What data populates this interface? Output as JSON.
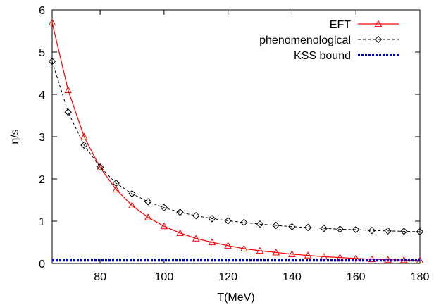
{
  "chart_data": {
    "type": "line",
    "xlabel": "T(MeV)",
    "ylabel": "η/s",
    "xlim": [
      65,
      180
    ],
    "ylim": [
      0,
      6
    ],
    "x_ticks": [
      80,
      100,
      120,
      140,
      160,
      180
    ],
    "y_ticks": [
      0,
      1,
      2,
      3,
      4,
      5,
      6
    ],
    "grid": false,
    "legend_position": "top-right",
    "series": [
      {
        "name": "EFT",
        "color": "#ff0000",
        "style": "solid",
        "marker": "triangle",
        "x": [
          65,
          70,
          75,
          80,
          85,
          90,
          95,
          100,
          105,
          110,
          115,
          120,
          125,
          130,
          135,
          140,
          145,
          150,
          155,
          160,
          165,
          170,
          175,
          180
        ],
        "y": [
          5.7,
          4.1,
          3.0,
          2.27,
          1.75,
          1.37,
          1.09,
          0.88,
          0.72,
          0.59,
          0.5,
          0.42,
          0.35,
          0.3,
          0.26,
          0.22,
          0.19,
          0.16,
          0.14,
          0.12,
          0.1,
          0.09,
          0.08,
          0.07
        ]
      },
      {
        "name": "phenomenological",
        "color": "#000000",
        "style": "dashed",
        "marker": "diamond",
        "x": [
          65,
          70,
          75,
          80,
          85,
          90,
          95,
          100,
          105,
          110,
          115,
          120,
          125,
          130,
          135,
          140,
          145,
          150,
          155,
          160,
          165,
          170,
          175,
          180
        ],
        "y": [
          4.78,
          3.58,
          2.8,
          2.28,
          1.9,
          1.65,
          1.46,
          1.32,
          1.21,
          1.13,
          1.06,
          1.01,
          0.97,
          0.93,
          0.9,
          0.87,
          0.85,
          0.83,
          0.81,
          0.8,
          0.78,
          0.77,
          0.76,
          0.75
        ]
      },
      {
        "name": "KSS bound",
        "color": "#0000cc",
        "style": "dotted",
        "marker": "none",
        "x": [
          65,
          180
        ],
        "y": [
          0.0796,
          0.0796
        ]
      }
    ]
  }
}
